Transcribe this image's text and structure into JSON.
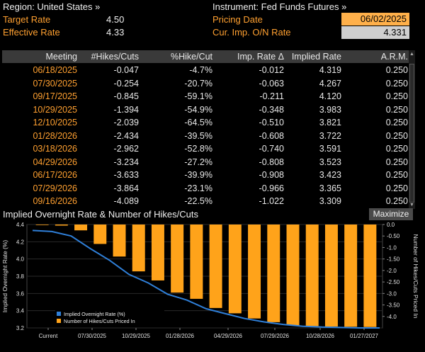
{
  "info": {
    "region_label": "Region: United States »",
    "target_label": "Target Rate",
    "target_value": "4.50",
    "effective_label": "Effective Rate",
    "effective_value": "4.33",
    "instrument_label": "Instrument: Fed Funds Futures »",
    "pricing_label": "Pricing Date",
    "pricing_value": "06/02/2025",
    "curimp_label": "Cur. Imp. O/N Rate",
    "curimp_value": "4.331"
  },
  "table": {
    "headers": [
      "Meeting",
      "#Hikes/Cuts",
      "%Hike/Cut",
      "Imp. Rate Δ",
      "Implied Rate",
      "A.R.M."
    ],
    "rows": [
      [
        "06/18/2025",
        "-0.047",
        "-4.7%",
        "-0.012",
        "4.319",
        "0.250"
      ],
      [
        "07/30/2025",
        "-0.254",
        "-20.7%",
        "-0.063",
        "4.267",
        "0.250"
      ],
      [
        "09/17/2025",
        "-0.845",
        "-59.1%",
        "-0.211",
        "4.120",
        "0.250"
      ],
      [
        "10/29/2025",
        "-1.394",
        "-54.9%",
        "-0.348",
        "3.983",
        "0.250"
      ],
      [
        "12/10/2025",
        "-2.039",
        "-64.5%",
        "-0.510",
        "3.821",
        "0.250"
      ],
      [
        "01/28/2026",
        "-2.434",
        "-39.5%",
        "-0.608",
        "3.722",
        "0.250"
      ],
      [
        "03/18/2026",
        "-2.962",
        "-52.8%",
        "-0.740",
        "3.591",
        "0.250"
      ],
      [
        "04/29/2026",
        "-3.234",
        "-27.2%",
        "-0.808",
        "3.523",
        "0.250"
      ],
      [
        "06/17/2026",
        "-3.633",
        "-39.9%",
        "-0.908",
        "3.423",
        "0.250"
      ],
      [
        "07/29/2026",
        "-3.864",
        "-23.1%",
        "-0.966",
        "3.365",
        "0.250"
      ],
      [
        "09/16/2026",
        "-4.089",
        "-22.5%",
        "-1.022",
        "3.309",
        "0.250"
      ]
    ]
  },
  "chart_header": {
    "title": "Implied Overnight Rate & Number of Hikes/Cuts",
    "maximize": "Maximize"
  },
  "colors": {
    "orange": "#ffa030",
    "bar": "#ffa31a",
    "line": "#2f7fd8",
    "grid": "#2a2a2a"
  },
  "chart_data": {
    "type": "bar",
    "title": "",
    "ylabel_left": "Implied Overnight Rate (%)",
    "ylabel_right": "Number of Hikes/Cuts Priced In",
    "ylim_left": [
      3.2,
      4.4
    ],
    "ylim_right": [
      -4.5,
      0.0
    ],
    "yticks_left": [
      "4.4",
      "4.2",
      "4.0",
      "3.8",
      "3.6",
      "3.4",
      "3.2"
    ],
    "yticks_right": [
      "0.0",
      "-0.50",
      "-1.0",
      "-1.50",
      "-2.0",
      "-2.50",
      "-3.0",
      "-3.50",
      "-4.0"
    ],
    "xticks": [
      "Current",
      "07/30/2025",
      "10/29/2025",
      "01/28/2026",
      "04/29/2026",
      "07/29/2026",
      "10/28/2026",
      "01/27/2027"
    ],
    "legend": [
      "Implied Overnight Rate (%)",
      "Number of Hikes/Cuts Priced In"
    ],
    "legend_position": "bottom-left",
    "series": [
      {
        "name": "Number of Hikes/Cuts Priced In",
        "type": "bar",
        "axis": "right",
        "values": [
          0.0,
          -0.047,
          -0.254,
          -0.845,
          -1.394,
          -2.039,
          -2.434,
          -2.962,
          -3.234,
          -3.633,
          -3.864,
          -4.089,
          -4.25,
          -4.39,
          -4.42,
          -4.44,
          -4.45,
          -4.46
        ]
      },
      {
        "name": "Implied Overnight Rate (%)",
        "type": "line",
        "axis": "left",
        "values": [
          4.331,
          4.319,
          4.267,
          4.12,
          3.983,
          3.821,
          3.722,
          3.591,
          3.523,
          3.423,
          3.365,
          3.309,
          3.27,
          3.24,
          3.22,
          3.21,
          3.205,
          3.2
        ]
      }
    ]
  }
}
